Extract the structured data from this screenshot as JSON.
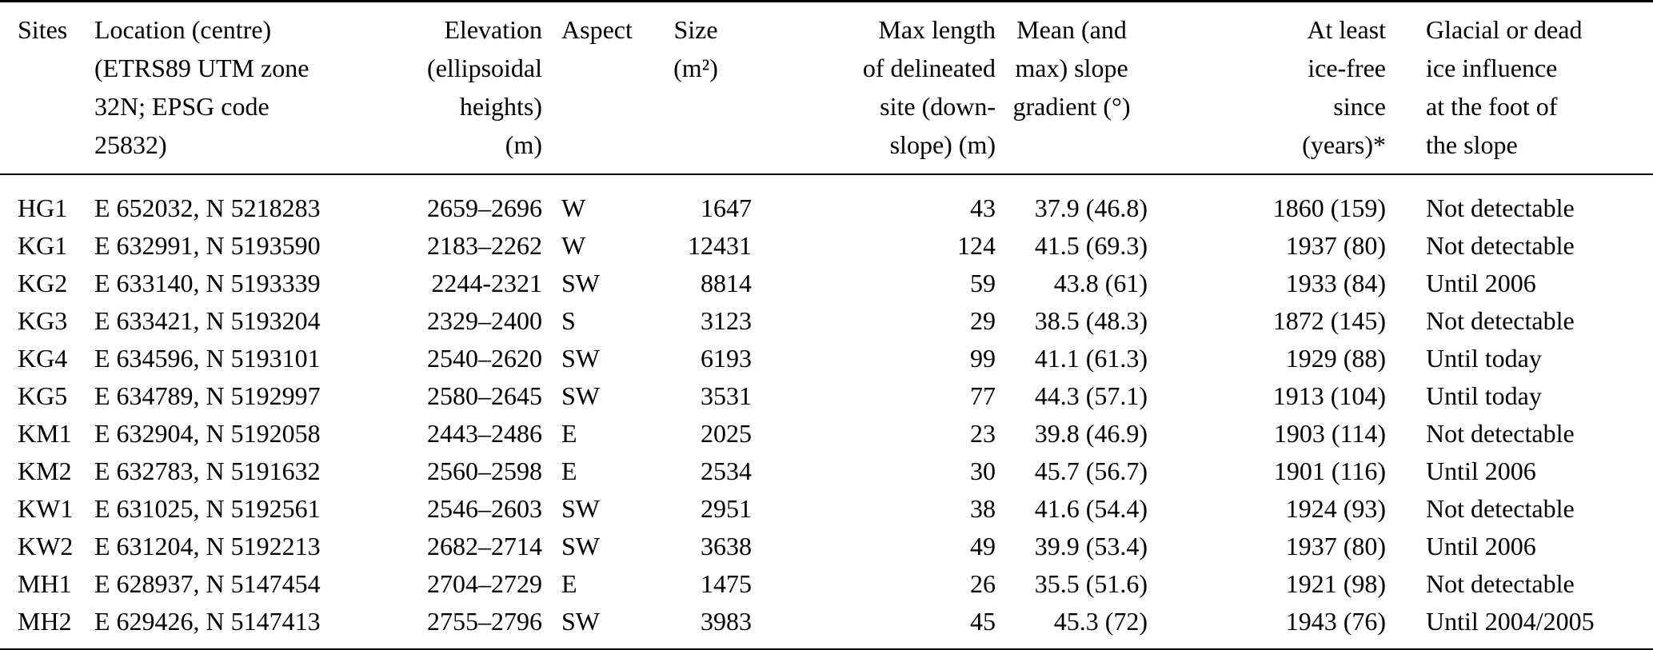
{
  "table": {
    "columns": [
      {
        "id": "sites",
        "align": "left",
        "label_lines": [
          "Sites"
        ]
      },
      {
        "id": "location",
        "align": "left",
        "label_lines": [
          "Location (centre)",
          "(ETRS89 UTM zone",
          "32N; EPSG code",
          "25832)"
        ]
      },
      {
        "id": "elevation",
        "align": "right",
        "label_lines": [
          "Elevation",
          "(ellipsoidal",
          "heights)",
          "(m)"
        ]
      },
      {
        "id": "aspect",
        "align": "left",
        "label_lines": [
          "Aspect"
        ]
      },
      {
        "id": "size",
        "align": "right",
        "header_align": "center",
        "label_lines": [
          "Size",
          "(m²)"
        ]
      },
      {
        "id": "max_length",
        "align": "right",
        "label_lines": [
          "Max length",
          "of delineated",
          "site (down-",
          "slope) (m)"
        ]
      },
      {
        "id": "slope",
        "align": "right",
        "header_align": "center",
        "label_lines": [
          "Mean (and",
          "max) slope",
          "gradient (°)"
        ]
      },
      {
        "id": "ice_free",
        "align": "right",
        "label_lines": [
          "At least",
          "ice-free",
          "since",
          "(years)*"
        ]
      },
      {
        "id": "glacial",
        "align": "left",
        "label_lines": [
          "Glacial or dead",
          "ice influence",
          "at the foot of",
          "the slope"
        ]
      }
    ],
    "rows": [
      {
        "sites": "HG1",
        "location": "E 652032, N 5218283",
        "elevation": "2659–2696",
        "aspect": "W",
        "size": "1647",
        "max_length": "43",
        "slope": "37.9 (46.8)",
        "ice_free": "1860 (159)",
        "glacial": "Not detectable"
      },
      {
        "sites": "KG1",
        "location": "E 632991, N 5193590",
        "elevation": "2183–2262",
        "aspect": "W",
        "size": "12431",
        "max_length": "124",
        "slope": "41.5 (69.3)",
        "ice_free": "1937 (80)",
        "glacial": "Not detectable"
      },
      {
        "sites": "KG2",
        "location": "E 633140, N 5193339",
        "elevation": "2244-2321",
        "aspect": "SW",
        "size": "8814",
        "max_length": "59",
        "slope": "43.8 (61)",
        "ice_free": "1933 (84)",
        "glacial": "Until 2006"
      },
      {
        "sites": "KG3",
        "location": "E 633421, N 5193204",
        "elevation": "2329–2400",
        "aspect": "S",
        "size": "3123",
        "max_length": "29",
        "slope": "38.5 (48.3)",
        "ice_free": "1872 (145)",
        "glacial": "Not detectable"
      },
      {
        "sites": "KG4",
        "location": "E 634596, N 5193101",
        "elevation": "2540–2620",
        "aspect": "SW",
        "size": "6193",
        "max_length": "99",
        "slope": "41.1 (61.3)",
        "ice_free": "1929 (88)",
        "glacial": "Until today"
      },
      {
        "sites": "KG5",
        "location": "E 634789, N 5192997",
        "elevation": "2580–2645",
        "aspect": "SW",
        "size": "3531",
        "max_length": "77",
        "slope": "44.3 (57.1)",
        "ice_free": "1913 (104)",
        "glacial": "Until today"
      },
      {
        "sites": "KM1",
        "location": "E 632904, N 5192058",
        "elevation": "2443–2486",
        "aspect": "E",
        "size": "2025",
        "max_length": "23",
        "slope": "39.8 (46.9)",
        "ice_free": "1903 (114)",
        "glacial": "Not detectable"
      },
      {
        "sites": "KM2",
        "location": "E 632783, N 5191632",
        "elevation": "2560–2598",
        "aspect": "E",
        "size": "2534",
        "max_length": "30",
        "slope": "45.7 (56.7)",
        "ice_free": "1901 (116)",
        "glacial": "Until 2006"
      },
      {
        "sites": "KW1",
        "location": "E 631025, N 5192561",
        "elevation": "2546–2603",
        "aspect": "SW",
        "size": "2951",
        "max_length": "38",
        "slope": "41.6 (54.4)",
        "ice_free": "1924 (93)",
        "glacial": "Not detectable"
      },
      {
        "sites": "KW2",
        "location": "E 631204, N 5192213",
        "elevation": "2682–2714",
        "aspect": "SW",
        "size": "3638",
        "max_length": "49",
        "slope": "39.9 (53.4)",
        "ice_free": "1937 (80)",
        "glacial": "Until 2006"
      },
      {
        "sites": "MH1",
        "location": "E 628937, N 5147454",
        "elevation": "2704–2729",
        "aspect": "E",
        "size": "1475",
        "max_length": "26",
        "slope": "35.5 (51.6)",
        "ice_free": "1921 (98)",
        "glacial": "Not detectable"
      },
      {
        "sites": "MH2",
        "location": "E 629426, N 5147413",
        "elevation": "2755–2796",
        "aspect": "SW",
        "size": "3983",
        "max_length": "45",
        "slope": "45.3 (72)",
        "ice_free": "1943 (76)",
        "glacial": "Until 2004/2005"
      }
    ]
  }
}
